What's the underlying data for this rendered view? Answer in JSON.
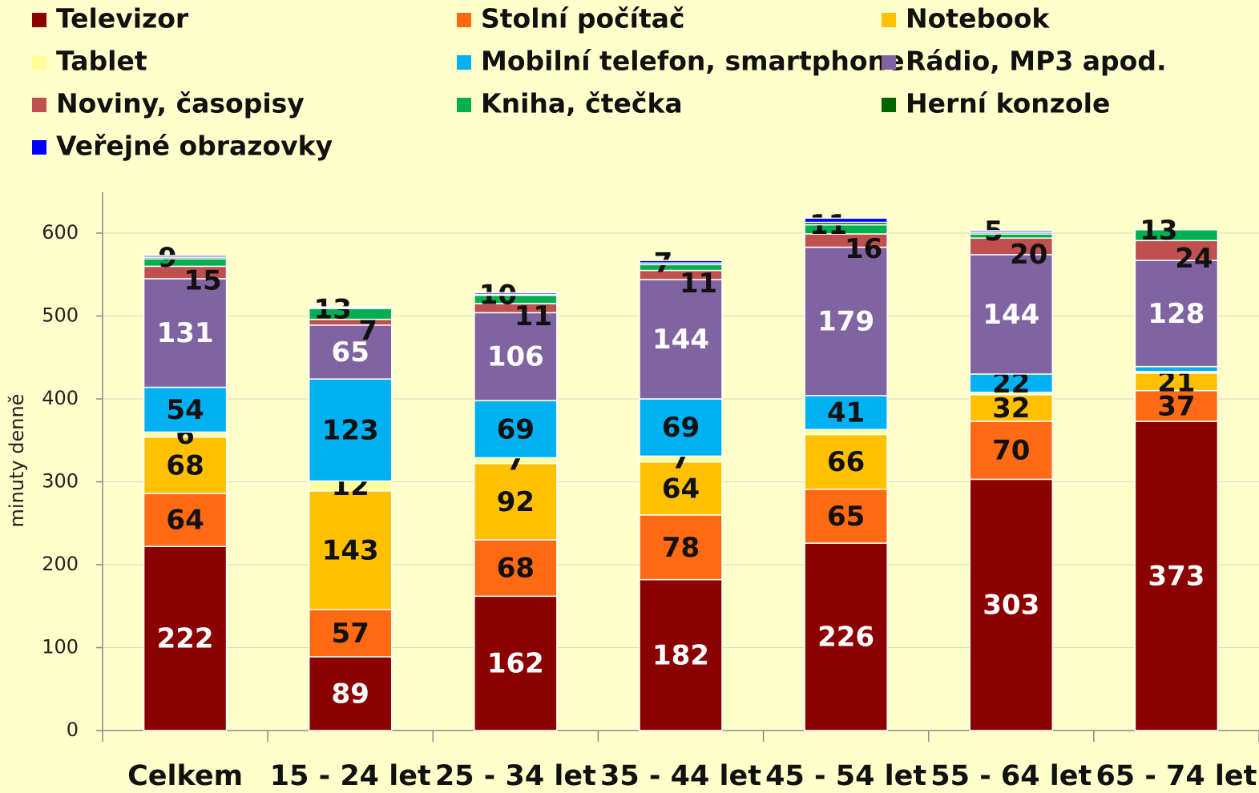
{
  "chart_data": {
    "type": "stacked_bar",
    "y_label": "minuty denně",
    "categories": [
      "Celkem",
      "15 - 24 let",
      "25 - 34 let",
      "35 - 44 let",
      "45 - 54 let",
      "55 - 64 let",
      "65 - 74 let"
    ],
    "series": [
      {
        "name": "Televizor",
        "color": "#8b0000",
        "label_color": "#ffffff",
        "values": [
          222,
          89,
          162,
          182,
          226,
          303,
          373
        ]
      },
      {
        "name": "Stolní počítač",
        "color": "#ff6a13",
        "label_color": "#111111",
        "values": [
          64,
          57,
          68,
          78,
          65,
          70,
          37
        ]
      },
      {
        "name": "Notebook",
        "color": "#ffc000",
        "label_color": "#111111",
        "values": [
          68,
          143,
          92,
          64,
          66,
          32,
          21
        ]
      },
      {
        "name": "Tablet",
        "color": "#ffff99",
        "label_color": "#111111",
        "values": [
          6,
          12,
          7,
          7,
          6,
          3,
          2
        ],
        "value_labels": [
          "6",
          "12",
          "7",
          "7",
          null,
          null,
          null
        ]
      },
      {
        "name": "Mobilní telefon, smartphone",
        "color": "#00b0f0",
        "label_color": "#111111",
        "values": [
          54,
          123,
          69,
          69,
          41,
          22,
          6
        ],
        "value_labels": [
          "54",
          "123",
          "69",
          "69",
          "41",
          "22",
          null
        ]
      },
      {
        "name": "Rádio, MP3 apod.",
        "color": "#8064a2",
        "label_color": "#ffffff",
        "values": [
          131,
          65,
          106,
          144,
          179,
          144,
          128
        ]
      },
      {
        "name": "Noviny, časopisy",
        "color": "#c0504d",
        "label_color": "#111111",
        "values": [
          15,
          7,
          11,
          11,
          16,
          20,
          24
        ]
      },
      {
        "name": "Kniha, čtečka",
        "color": "#00b050",
        "label_color": "#111111",
        "values": [
          9,
          13,
          10,
          7,
          11,
          5,
          13
        ]
      },
      {
        "name": "Herní konzole",
        "color": "#006400",
        "label_color": "#111111",
        "values": [
          2,
          1,
          1,
          2,
          3,
          2,
          0
        ],
        "value_labels": [
          null,
          null,
          null,
          null,
          null,
          null,
          null
        ]
      },
      {
        "name": "Veřejné obrazovky",
        "color": "#0000ff",
        "label_color": "#111111",
        "values": [
          2,
          1,
          2,
          3,
          5,
          2,
          0
        ],
        "value_labels": [
          null,
          null,
          null,
          null,
          null,
          null,
          null
        ]
      }
    ],
    "ylim": [
      0,
      650
    ],
    "yticks": [
      0,
      100,
      200,
      300,
      400,
      500,
      600
    ],
    "grid": true
  }
}
